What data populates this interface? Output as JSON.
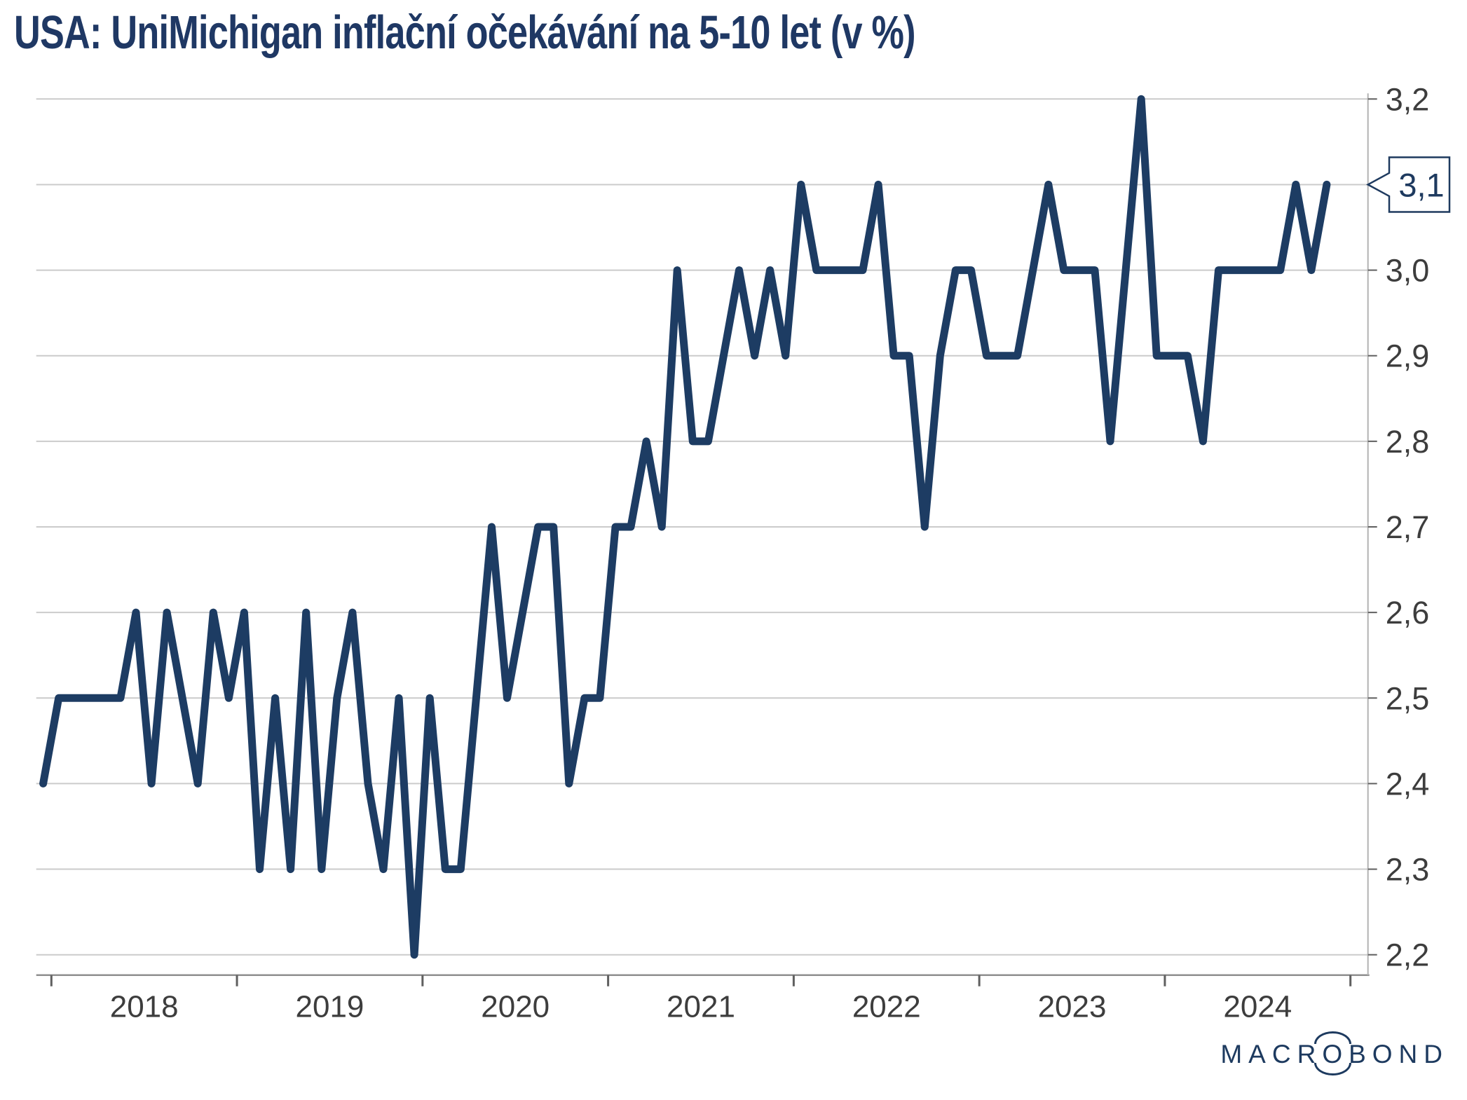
{
  "title": "USA: UniMichigan inflační očekávání na 5-10 let (v %)",
  "callout": {
    "label": "3,1",
    "value": 3.1
  },
  "logo": {
    "part1": "MACR",
    "part2": "O",
    "part3": "BOND",
    "name": "macrobond-logo"
  },
  "axis": {
    "x_year_labels": [
      "2018",
      "2019",
      "2020",
      "2021",
      "2022",
      "2023",
      "2024"
    ],
    "y_tick_values": [
      3.2,
      3.1,
      3.0,
      2.9,
      2.8,
      2.7,
      2.6,
      2.5,
      2.4,
      2.3,
      2.2
    ],
    "y_tick_labels": [
      "3,2",
      "3,1",
      "3,0",
      "2,9",
      "2,8",
      "2,7",
      "2,6",
      "2,5",
      "2,4",
      "2,3",
      "2,2"
    ]
  },
  "colors": {
    "line": "#1d3c63",
    "title": "#1f3864",
    "gridline": "#cbcbcb",
    "axis_line": "#8f8f8f",
    "right_axis_line": "#b3b3b3",
    "tick": "#5f5f5f",
    "tick_label": "#3d3d3d",
    "callout": "#1e3a5f",
    "background": "#ffffff"
  },
  "chart_data": {
    "type": "line",
    "title": "USA: UniMichigan inflační očekávání na 5-10 let (v %)",
    "unit": "%",
    "frequency": "monthly",
    "start": "2017-12",
    "end": "2024-11",
    "xlabel": "",
    "ylabel": "",
    "ylim": [
      2.17,
      3.2
    ],
    "grid": "horizontal",
    "legend_position": "none",
    "last_value_label": "3,1",
    "categories_years": [
      "2018",
      "2019",
      "2020",
      "2021",
      "2022",
      "2023",
      "2024"
    ],
    "series": [
      {
        "name": "UniMichigan inflační očekávání na 5-10 let",
        "values": [
          2.4,
          2.5,
          2.5,
          2.5,
          2.5,
          2.5,
          2.6,
          2.4,
          2.6,
          2.5,
          2.4,
          2.6,
          2.5,
          2.6,
          2.3,
          2.5,
          2.3,
          2.6,
          2.3,
          2.5,
          2.6,
          2.4,
          2.3,
          2.5,
          2.2,
          2.5,
          2.3,
          2.3,
          2.5,
          2.7,
          2.5,
          2.6,
          2.7,
          2.7,
          2.4,
          2.5,
          2.5,
          2.7,
          2.7,
          2.8,
          2.7,
          3.0,
          2.8,
          2.8,
          2.9,
          3.0,
          2.9,
          3.0,
          2.9,
          3.1,
          3.0,
          3.0,
          3.0,
          3.0,
          3.1,
          2.9,
          2.9,
          2.7,
          2.9,
          3.0,
          3.0,
          2.9,
          2.9,
          2.9,
          3.0,
          3.1,
          3.0,
          3.0,
          3.0,
          2.8,
          3.0,
          3.2,
          2.9,
          2.9,
          2.9,
          2.8,
          3.0,
          3.0,
          3.0,
          3.0,
          3.0,
          3.1,
          3.0,
          3.1
        ]
      }
    ]
  }
}
